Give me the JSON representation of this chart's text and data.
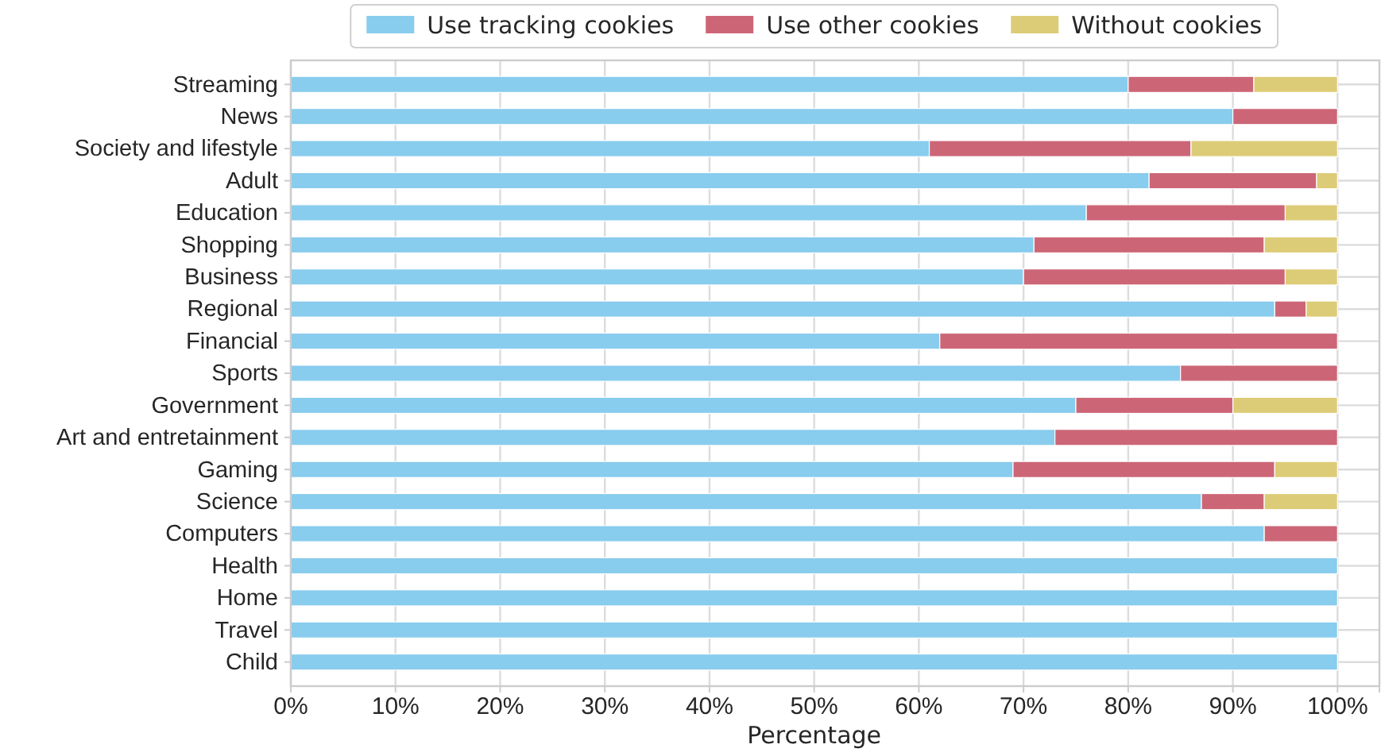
{
  "chart_data": {
    "type": "bar",
    "orientation": "horizontal",
    "stacked": true,
    "xlabel": "Percentage",
    "categories": [
      "Streaming",
      "News",
      "Society and lifestyle",
      "Adult",
      "Education",
      "Shopping",
      "Business",
      "Regional",
      "Financial",
      "Sports",
      "Government",
      "Art and entretainment",
      "Gaming",
      "Science",
      "Computers",
      "Health",
      "Home",
      "Travel",
      "Child"
    ],
    "series": [
      {
        "name": "Use tracking cookies",
        "color": "#88ccee",
        "values": [
          80,
          90,
          61,
          82,
          76,
          71,
          70,
          94,
          62,
          85,
          75,
          73,
          69,
          87,
          93,
          100,
          100,
          100,
          100
        ]
      },
      {
        "name": "Use other cookies",
        "color": "#cc6677",
        "values": [
          12,
          10,
          25,
          16,
          19,
          22,
          25,
          3,
          38,
          15,
          15,
          27,
          25,
          6,
          7,
          0,
          0,
          0,
          0
        ]
      },
      {
        "name": "Without cookies",
        "color": "#ddcc77",
        "values": [
          8,
          0,
          14,
          2,
          5,
          7,
          5,
          3,
          0,
          0,
          10,
          0,
          6,
          7,
          0,
          0,
          0,
          0,
          0
        ]
      }
    ],
    "xlim": [
      0,
      104
    ],
    "xticks": [
      {
        "value": 0,
        "label": "0%"
      },
      {
        "value": 10,
        "label": "10%"
      },
      {
        "value": 20,
        "label": "20%"
      },
      {
        "value": 30,
        "label": "30%"
      },
      {
        "value": 40,
        "label": "40%"
      },
      {
        "value": 50,
        "label": "50%"
      },
      {
        "value": 60,
        "label": "60%"
      },
      {
        "value": 70,
        "label": "70%"
      },
      {
        "value": 80,
        "label": "80%"
      },
      {
        "value": 90,
        "label": "90%"
      },
      {
        "value": 100,
        "label": "100%"
      }
    ],
    "grid": true,
    "legend": "top"
  }
}
